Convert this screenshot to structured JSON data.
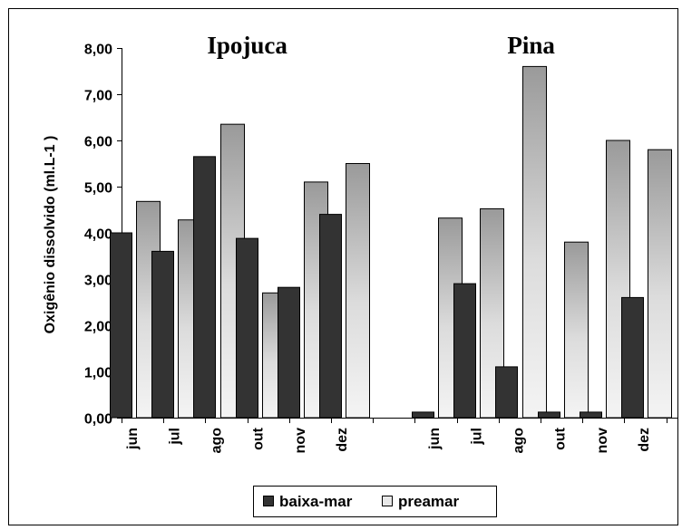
{
  "chart_data": {
    "type": "bar",
    "ylabel": "Oxigênio dissolvido (ml.L-1  )",
    "ylim": [
      0,
      8
    ],
    "yticks": [
      "0,00",
      "1,00",
      "2,00",
      "3,00",
      "4,00",
      "5,00",
      "6,00",
      "7,00",
      "8,00"
    ],
    "grid": false,
    "legend_position": "bottom",
    "groups": [
      {
        "title": "Ipojuca",
        "categories": [
          "jun",
          "jul",
          "ago",
          "out",
          "nov",
          "dez"
        ],
        "series": [
          {
            "name": "baixa-mar",
            "values": [
              4.0,
              3.6,
              5.65,
              3.88,
              2.82,
              4.4
            ]
          },
          {
            "name": "preamar",
            "values": [
              4.68,
              4.28,
              6.35,
              2.7,
              5.1,
              5.5
            ]
          }
        ]
      },
      {
        "title": "Pina",
        "categories": [
          "jun",
          "jul",
          "ago",
          "out",
          "nov",
          "dez"
        ],
        "series": [
          {
            "name": "baixa-mar",
            "values": [
              0.12,
              2.9,
              1.1,
              0.12,
              0.12,
              2.6
            ]
          },
          {
            "name": "preamar",
            "values": [
              4.32,
              4.52,
              7.6,
              3.8,
              6.0,
              5.8
            ]
          }
        ]
      }
    ],
    "legend": [
      {
        "name": "baixa-mar",
        "color": "#333333"
      },
      {
        "name": "preamar",
        "color": "#e8e8e8"
      }
    ],
    "colors": {
      "baixa-mar": "#333333",
      "preamar": "#e8e8e8"
    }
  }
}
